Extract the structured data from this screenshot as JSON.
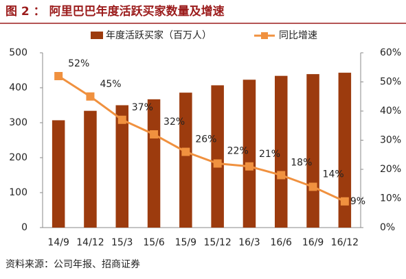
{
  "chart_data": {
    "type": "bar-line",
    "title": "图 2 ： 阿里巴巴年度活跃买家数量及增速",
    "source": "资料来源：公司年报、招商证券",
    "categories": [
      "14/9",
      "14/12",
      "15/3",
      "15/6",
      "15/9",
      "15/12",
      "16/3",
      "16/6",
      "16/9",
      "16/12"
    ],
    "series": [
      {
        "name": "年度活跃买家（百万人）",
        "color": "#9c3b0e",
        "values": [
          307,
          334,
          350,
          367,
          386,
          407,
          423,
          434,
          439,
          443
        ]
      },
      {
        "name": "同比增速",
        "color": "#f0913f",
        "axis": "y2",
        "values": [
          52,
          45,
          37,
          32,
          26,
          22,
          21,
          18,
          14,
          9
        ],
        "value_labels": [
          "52%",
          "45%",
          "37%",
          "32%",
          "26%",
          "22%",
          "21%",
          "18%",
          "14%",
          "9%"
        ]
      }
    ],
    "ylim": [
      0,
      500
    ],
    "yticks": [
      0,
      100,
      200,
      300,
      400,
      500
    ],
    "y2lim": [
      0,
      60
    ],
    "y2ticks": [
      {
        "value": 0,
        "label": "0%"
      },
      {
        "value": 10,
        "label": "10%"
      },
      {
        "value": 20,
        "label": "20%"
      },
      {
        "value": 30,
        "label": "30%"
      },
      {
        "value": 40,
        "label": "40%"
      },
      {
        "value": 50,
        "label": "50%"
      },
      {
        "value": 60,
        "label": "60%"
      }
    ],
    "legend": "top"
  }
}
